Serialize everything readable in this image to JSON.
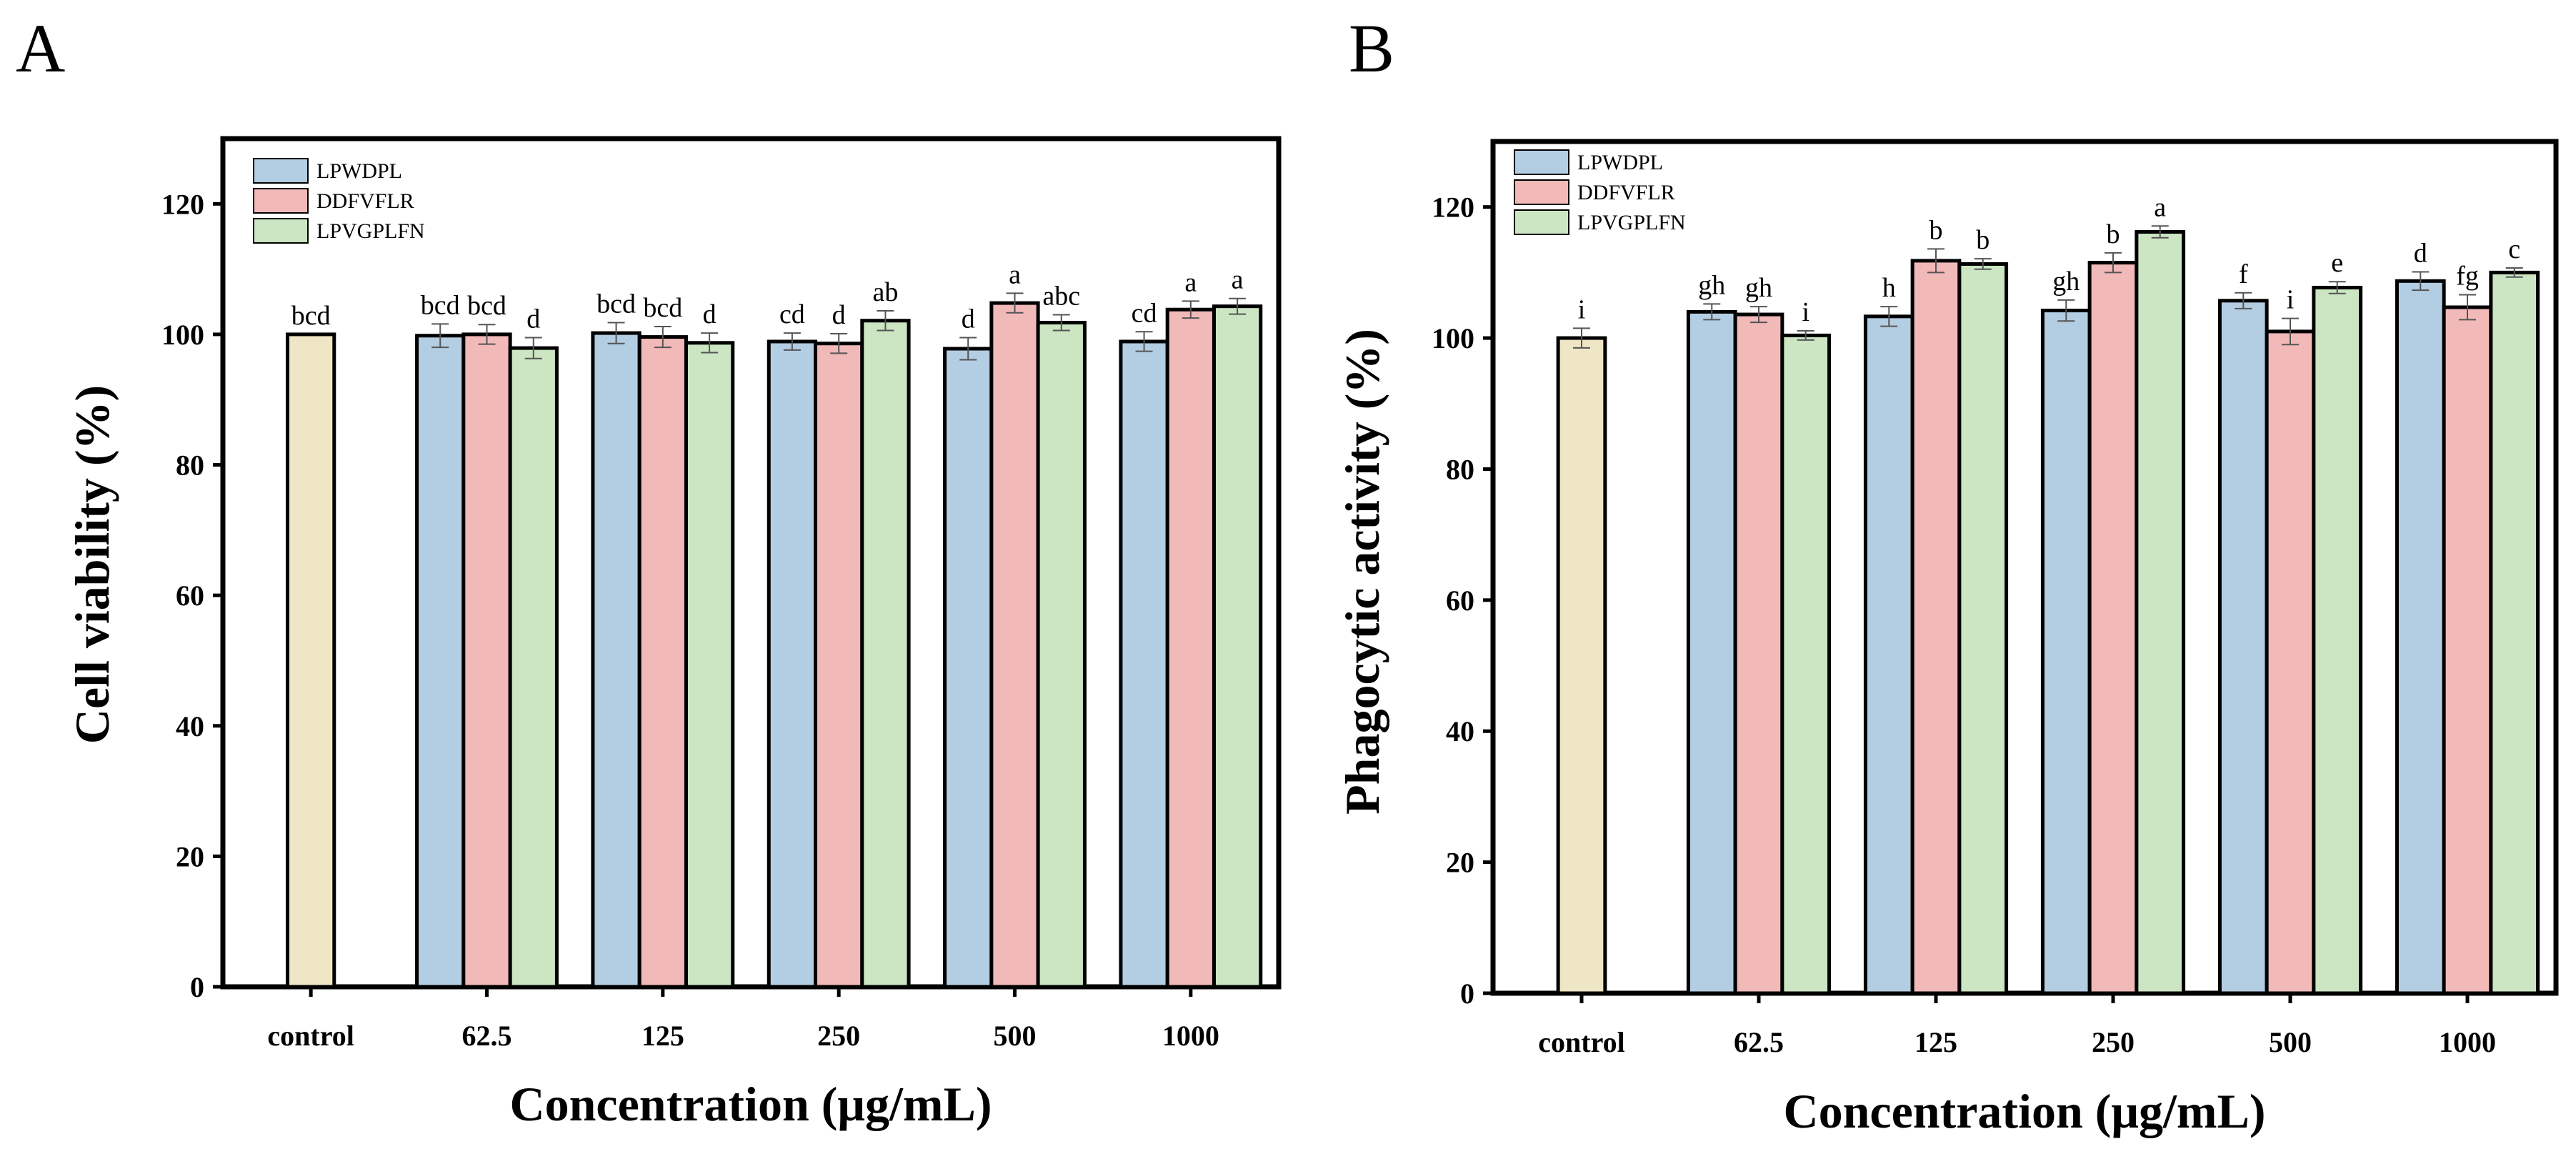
{
  "figure": {
    "panels": [
      "A",
      "B"
    ]
  },
  "colors": {
    "LPWDPL": "#b3cde3",
    "DDFVFLR": "#f2b9b9",
    "LPVGPLFN": "#cce5c3",
    "control": "#efe6c6",
    "stroke": "#000000",
    "errorbar": "#555555"
  },
  "chart_data": [
    {
      "panel": "A",
      "type": "bar",
      "xlabel": "Concentration (μg/mL)",
      "ylabel": "Cell viability (%)",
      "ylim": [
        0,
        130
      ],
      "yticks": [
        0,
        20,
        40,
        60,
        80,
        100,
        120
      ],
      "categories": [
        "control",
        "62.5",
        "125",
        "250",
        "500",
        "1000"
      ],
      "control": {
        "label": "control",
        "value": 100,
        "error": 0,
        "sig": "bcd"
      },
      "series": [
        {
          "name": "LPWDPL",
          "values": [
            null,
            99.8,
            100.2,
            98.9,
            97.8,
            98.9
          ],
          "errors": [
            null,
            1.8,
            1.6,
            1.3,
            1.7,
            1.5
          ],
          "sig": [
            null,
            "bcd",
            "bcd",
            "cd",
            "d",
            "cd"
          ]
        },
        {
          "name": "DDFVFLR",
          "values": [
            null,
            100.0,
            99.6,
            98.6,
            104.8,
            103.8
          ],
          "errors": [
            null,
            1.5,
            1.6,
            1.5,
            1.5,
            1.3
          ],
          "sig": [
            null,
            "bcd",
            "bcd",
            "d",
            "a",
            "a"
          ]
        },
        {
          "name": "LPVGPLFN",
          "values": [
            null,
            97.9,
            98.7,
            102.1,
            101.8,
            104.3
          ],
          "errors": [
            null,
            1.6,
            1.5,
            1.5,
            1.2,
            1.2
          ],
          "sig": [
            null,
            "d",
            "d",
            "ab",
            "abc",
            "a"
          ]
        }
      ],
      "legend": [
        "LPWDPL",
        "DDFVFLR",
        "LPVGPLFN"
      ],
      "legend_position": "top-left"
    },
    {
      "panel": "B",
      "type": "bar",
      "xlabel": "Concentration (μg/mL)",
      "ylabel": "Phagocytic activity (%)",
      "ylim": [
        0,
        130
      ],
      "yticks": [
        0,
        20,
        40,
        60,
        80,
        100,
        120
      ],
      "categories": [
        "control",
        "62.5",
        "125",
        "250",
        "500",
        "1000"
      ],
      "control": {
        "label": "control",
        "value": 100,
        "error": 1.5,
        "sig": "i"
      },
      "series": [
        {
          "name": "LPWDPL",
          "values": [
            null,
            104.0,
            103.3,
            104.2,
            105.7,
            108.7
          ],
          "errors": [
            null,
            1.2,
            1.5,
            1.6,
            1.2,
            1.4
          ],
          "sig": [
            null,
            "gh",
            "h",
            "gh",
            "f",
            "d"
          ]
        },
        {
          "name": "DDFVFLR",
          "values": [
            null,
            103.6,
            111.8,
            111.5,
            101.0,
            104.7
          ],
          "errors": [
            null,
            1.2,
            1.8,
            1.5,
            2.0,
            1.9
          ],
          "sig": [
            null,
            "gh",
            "b",
            "b",
            "i",
            "fg"
          ]
        },
        {
          "name": "LPVGPLFN",
          "values": [
            null,
            100.4,
            111.3,
            116.2,
            107.7,
            110.0
          ],
          "errors": [
            null,
            0.7,
            0.8,
            0.9,
            0.9,
            0.7
          ],
          "sig": [
            null,
            "i",
            "b",
            "a",
            "e",
            "c"
          ]
        }
      ],
      "legend": [
        "LPWDPL",
        "DDFVFLR",
        "LPVGPLFN"
      ],
      "legend_position": "top-left"
    }
  ]
}
